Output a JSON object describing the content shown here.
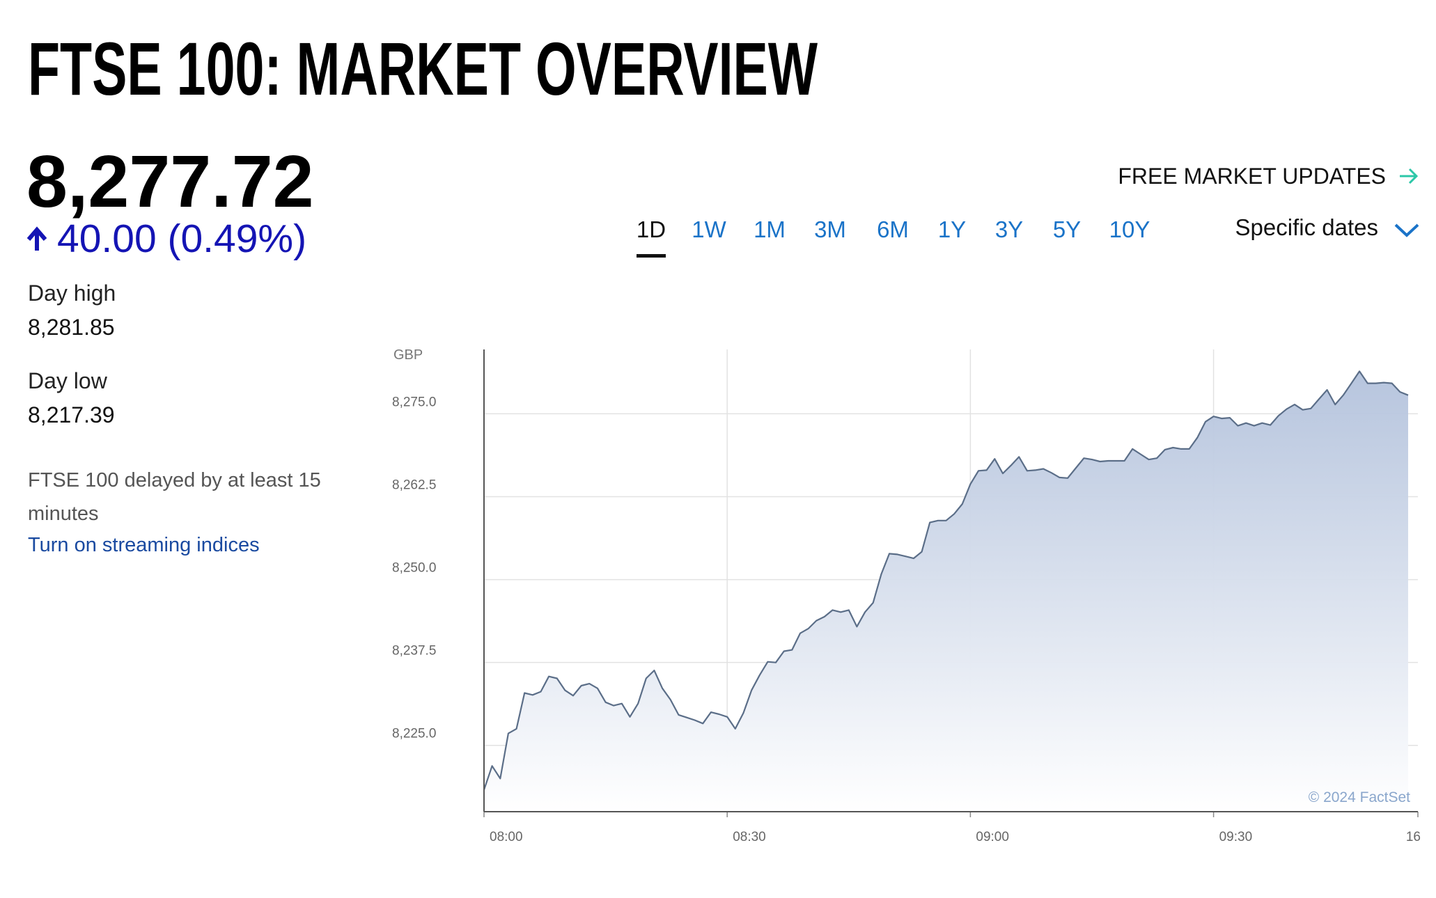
{
  "header": {
    "title": "FTSE 100: MARKET OVERVIEW"
  },
  "quote": {
    "price": "8,277.72",
    "change": "40.00 (0.49%)",
    "day_high_label": "Day high",
    "day_high": "8,281.85",
    "day_low_label": "Day low",
    "day_low": "8,217.39",
    "delay_note": "FTSE 100 delayed by at least 15 minutes",
    "streaming_link": "Turn on streaming indices"
  },
  "nav": {
    "updates_link": "FREE MARKET UPDATES",
    "ranges": [
      "1D",
      "1W",
      "1M",
      "3M",
      "6M",
      "1Y",
      "3Y",
      "5Y",
      "10Y"
    ],
    "selected_range": "1D",
    "specific_dates": "Specific dates"
  },
  "chart_data": {
    "type": "area",
    "y_unit": "GBP",
    "credit": "© 2024 FactSet",
    "x": [
      "08:00",
      "08:01",
      "08:02",
      "08:03",
      "08:04",
      "08:05",
      "08:06",
      "08:07",
      "08:08",
      "08:09",
      "08:10",
      "08:11",
      "08:12",
      "08:13",
      "08:14",
      "08:15",
      "08:16",
      "08:17",
      "08:18",
      "08:19",
      "08:20",
      "08:21",
      "08:22",
      "08:23",
      "08:24",
      "08:25",
      "08:26",
      "08:27",
      "08:28",
      "08:29",
      "08:30",
      "08:31",
      "08:32",
      "08:33",
      "08:34",
      "08:35",
      "08:36",
      "08:37",
      "08:38",
      "08:39",
      "08:40",
      "08:41",
      "08:42",
      "08:43",
      "08:44",
      "08:45",
      "08:46",
      "08:47",
      "08:48",
      "08:49",
      "08:50",
      "08:51",
      "08:52",
      "08:53",
      "08:54",
      "08:55",
      "08:56",
      "08:57",
      "08:58",
      "08:59",
      "09:00",
      "09:01",
      "09:02",
      "09:03",
      "09:04",
      "09:05",
      "09:06",
      "09:07",
      "09:08",
      "09:09",
      "09:10",
      "09:11",
      "09:12",
      "09:13",
      "09:14",
      "09:15",
      "09:16",
      "09:17",
      "09:18",
      "09:19",
      "09:20",
      "09:21",
      "09:22",
      "09:23",
      "09:24",
      "09:25",
      "09:26",
      "09:27",
      "09:28",
      "09:29",
      "09:30",
      "09:31",
      "09:32",
      "09:33",
      "09:34",
      "09:35",
      "09:36",
      "09:37",
      "09:38",
      "09:39",
      "09:40",
      "09:41",
      "09:42",
      "09:43",
      "09:44",
      "09:45",
      "09:46",
      "09:47",
      "09:48",
      "09:49",
      "09:50",
      "09:51",
      "09:52",
      "09:53",
      "09:54"
    ],
    "values": [
      8218.3,
      8221.9,
      8220.0,
      8226.8,
      8227.5,
      8232.9,
      8232.6,
      8233.1,
      8235.4,
      8235.1,
      8233.3,
      8232.5,
      8234.0,
      8234.3,
      8233.6,
      8231.5,
      8231.0,
      8231.3,
      8229.3,
      8231.3,
      8235.1,
      8236.3,
      8233.6,
      8231.9,
      8229.6,
      8229.2,
      8228.8,
      8228.3,
      8230.0,
      8229.7,
      8229.3,
      8227.5,
      8229.9,
      8233.3,
      8235.6,
      8237.6,
      8237.5,
      8239.2,
      8239.4,
      8241.9,
      8242.6,
      8243.8,
      8244.4,
      8245.4,
      8245.1,
      8245.4,
      8242.9,
      8245.1,
      8246.5,
      8250.8,
      8253.9,
      8253.8,
      8253.5,
      8253.2,
      8254.2,
      8258.6,
      8258.9,
      8258.9,
      8259.9,
      8261.4,
      8264.4,
      8266.4,
      8266.5,
      8268.2,
      8266.0,
      8267.2,
      8268.5,
      8266.4,
      8266.5,
      8266.7,
      8266.1,
      8265.4,
      8265.3,
      8266.8,
      8268.3,
      8268.1,
      8267.8,
      8267.9,
      8267.9,
      8267.9,
      8269.7,
      8268.9,
      8268.1,
      8268.3,
      8269.6,
      8269.9,
      8269.7,
      8269.7,
      8271.4,
      8273.8,
      8274.6,
      8274.3,
      8274.4,
      8273.2,
      8273.6,
      8273.2,
      8273.6,
      8273.3,
      8274.7,
      8275.7,
      8276.4,
      8275.6,
      8275.8,
      8277.2,
      8278.6,
      8276.4,
      8277.8,
      8279.6,
      8281.4,
      8279.6,
      8279.6,
      8279.7,
      8279.6,
      8278.3,
      8277.8
    ],
    "line_color": "#5b6e88",
    "fill_color": "#b3c2dc",
    "ylim": [
      8215,
      8284.7
    ],
    "yticks": [
      {
        "value": 8225,
        "label": "8,225.0"
      },
      {
        "value": 8237.5,
        "label": "8,237.5"
      },
      {
        "value": 8250,
        "label": "8,250.0"
      },
      {
        "value": 8262.5,
        "label": "8,262.5"
      },
      {
        "value": 8275,
        "label": "8,275.0"
      }
    ],
    "xticks": [
      "08:00",
      "08:30",
      "09:00",
      "09:30",
      "16"
    ],
    "grid": true
  }
}
